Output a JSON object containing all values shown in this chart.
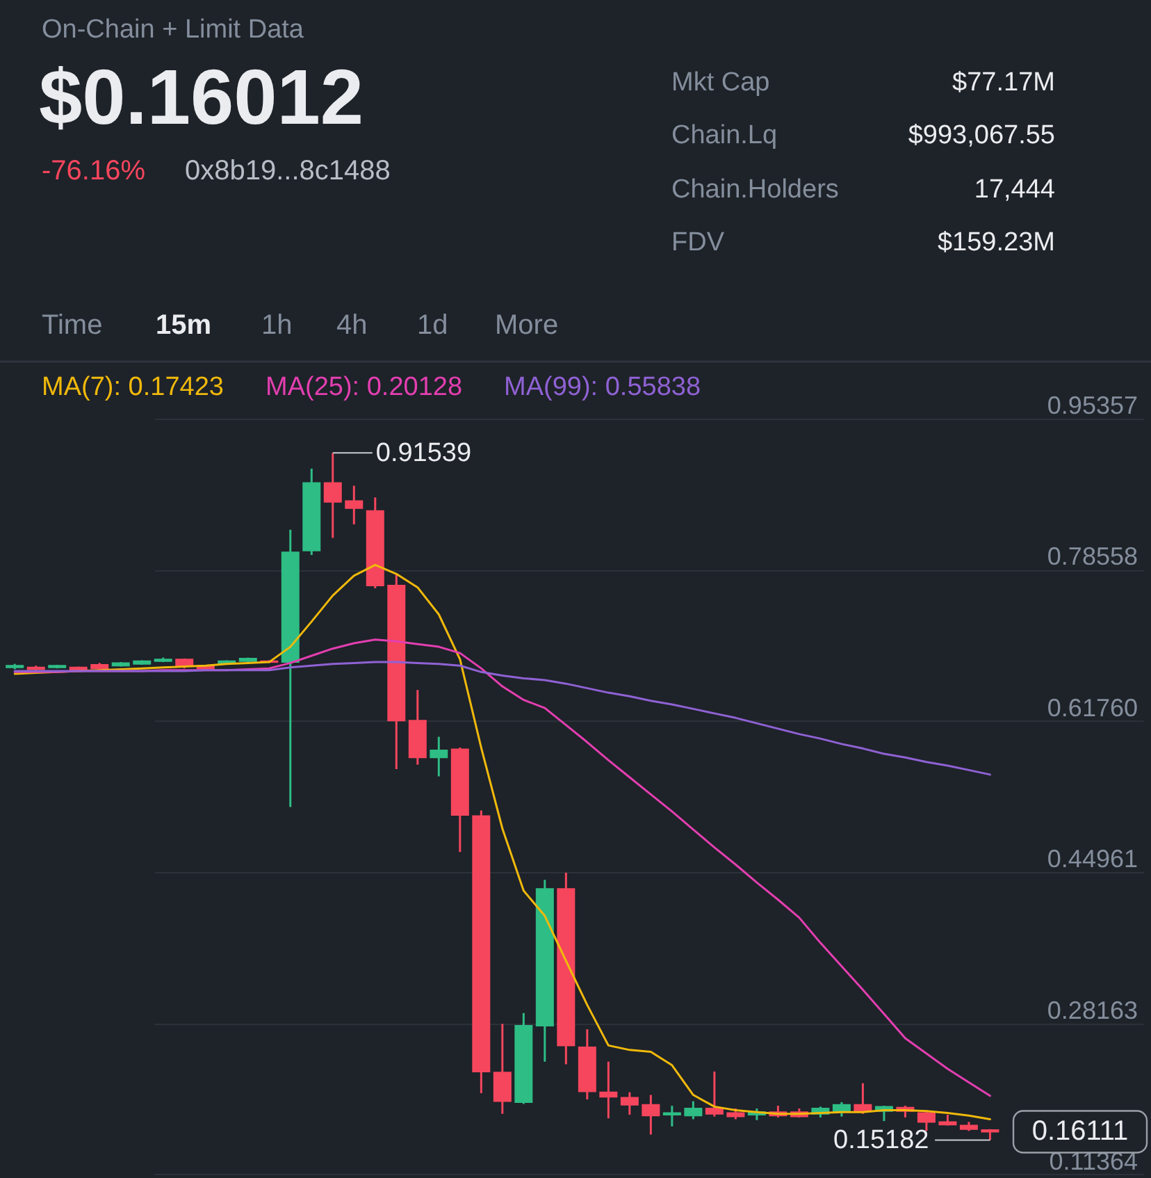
{
  "chart_data": {
    "type": "candlestick",
    "title": "On-Chain + Limit Data",
    "subtitle": "$0.16012",
    "annotations": [
      "-76.16%",
      "0x8b19...8c1488",
      "Mkt Cap",
      "$77.17M",
      "Chain.Lq",
      "$993,067.55",
      "Chain.Holders",
      "17,444",
      "FDV",
      "$159.23M",
      "Time",
      "15m",
      "1h",
      "4h",
      "1d",
      "More",
      "0.91539",
      "0.15182",
      "0.16111"
    ],
    "categories": [
      null,
      null,
      null,
      null,
      null,
      null,
      null,
      null,
      null,
      null,
      null,
      null,
      null,
      null,
      null,
      null,
      null,
      null,
      null,
      null,
      null,
      null,
      null,
      null,
      null,
      null,
      null,
      null,
      null,
      null,
      null,
      null,
      null,
      null,
      null,
      null,
      null,
      null,
      null,
      null,
      null,
      null,
      null,
      null,
      null,
      null,
      null
    ],
    "ohlc": [
      [
        0.677,
        0.681,
        0.675,
        0.679
      ],
      [
        0.677,
        0.679,
        0.674,
        0.675
      ],
      [
        0.677,
        0.68,
        0.676,
        0.679
      ],
      [
        0.677,
        0.678,
        0.673,
        0.674
      ],
      [
        0.68,
        0.682,
        0.675,
        0.676
      ],
      [
        0.679,
        0.683,
        0.678,
        0.682
      ],
      [
        0.681,
        0.685,
        0.68,
        0.684
      ],
      [
        0.684,
        0.688,
        0.683,
        0.686
      ],
      [
        0.686,
        0.687,
        0.676,
        0.679
      ],
      [
        0.679,
        0.68,
        0.675,
        0.676
      ],
      [
        0.682,
        0.685,
        0.681,
        0.684
      ],
      [
        0.684,
        0.688,
        0.683,
        0.687
      ],
      [
        0.684,
        0.685,
        0.682,
        0.683
      ],
      [
        0.683,
        0.83,
        0.522,
        0.805
      ],
      [
        0.807,
        0.898,
        0.802,
        0.882
      ],
      [
        0.882,
        0.91539,
        0.821,
        0.861
      ],
      [
        0.862,
        0.879,
        0.836,
        0.854
      ],
      [
        0.851,
        0.866,
        0.765,
        0.768
      ],
      [
        0.768,
        0.78,
        0.564,
        0.618
      ],
      [
        0.618,
        0.652,
        0.569,
        0.577
      ],
      [
        0.577,
        0.6,
        0.556,
        0.585
      ],
      [
        0.586,
        0.588,
        0.472,
        0.513
      ],
      [
        0.512,
        0.518,
        0.204,
        0.228
      ],
      [
        0.227,
        0.281,
        0.181,
        0.195
      ],
      [
        0.194,
        0.293,
        0.192,
        0.279
      ],
      [
        0.279,
        0.441,
        0.239,
        0.431
      ],
      [
        0.431,
        0.449,
        0.236,
        0.257
      ],
      [
        0.255,
        0.275,
        0.197,
        0.206
      ],
      [
        0.205,
        0.239,
        0.176,
        0.2
      ],
      [
        0.199,
        0.205,
        0.18,
        0.191
      ],
      [
        0.191,
        0.202,
        0.158,
        0.179
      ],
      [
        0.18,
        0.19,
        0.167,
        0.182
      ],
      [
        0.179,
        0.195,
        0.175,
        0.187
      ],
      [
        0.187,
        0.228,
        0.178,
        0.181
      ],
      [
        0.182,
        0.187,
        0.175,
        0.178
      ],
      [
        0.18,
        0.187,
        0.174,
        0.183
      ],
      [
        0.183,
        0.19,
        0.177,
        0.179
      ],
      [
        0.183,
        0.187,
        0.177,
        0.178
      ],
      [
        0.181,
        0.189,
        0.177,
        0.187
      ],
      [
        0.184,
        0.194,
        0.178,
        0.191
      ],
      [
        0.191,
        0.215,
        0.181,
        0.184
      ],
      [
        0.184,
        0.19,
        0.173,
        0.189
      ],
      [
        0.188,
        0.19,
        0.177,
        0.184
      ],
      [
        0.182,
        0.185,
        0.162,
        0.172
      ],
      [
        0.172,
        0.18,
        0.168,
        0.169
      ],
      [
        0.168,
        0.172,
        0.162,
        0.164
      ],
      [
        0.163,
        0.164,
        0.15182,
        0.16111
      ]
    ],
    "colors": [
      "#2ebd85",
      "#f6465d",
      "#2ebd85",
      "#f6465d",
      "#f6465d",
      "#2ebd85",
      "#2ebd85",
      "#2ebd85",
      "#f6465d",
      "#f6465d",
      "#2ebd85",
      "#2ebd85",
      "#f6465d",
      "#2ebd85",
      "#2ebd85",
      "#f6465d",
      "#f6465d",
      "#f6465d",
      "#f6465d",
      "#f6465d",
      "#2ebd85",
      "#f6465d",
      "#f6465d",
      "#f6465d",
      "#2ebd85",
      "#2ebd85",
      "#f6465d",
      "#f6465d",
      "#f6465d",
      "#f6465d",
      "#f6465d",
      "#2ebd85",
      "#2ebd85",
      "#f6465d",
      "#f6465d",
      "#2ebd85",
      "#f6465d",
      "#f6465d",
      "#2ebd85",
      "#2ebd85",
      "#f6465d",
      "#2ebd85",
      "#f6465d",
      "#f6465d",
      "#f6465d",
      "#f6465d",
      "#f6465d"
    ],
    "series": [
      {
        "name": "MA(7): 0.17423",
        "type": "line",
        "color": "#f0b90b",
        "values": [
          0.67,
          0.671,
          0.672,
          0.673,
          0.674,
          0.675,
          0.676,
          0.677,
          0.678,
          0.679,
          0.681,
          0.682,
          0.683,
          0.7,
          0.728,
          0.757,
          0.779,
          0.791,
          0.781,
          0.766,
          0.736,
          0.686,
          0.588,
          0.498,
          0.429,
          0.401,
          0.351,
          0.302,
          0.257,
          0.252,
          0.25,
          0.235,
          0.202,
          0.189,
          0.185,
          0.183,
          0.181,
          0.181,
          0.182,
          0.183,
          0.183,
          0.185,
          0.185,
          0.184,
          0.182,
          0.179,
          0.175
        ]
      },
      {
        "name": "MA(25): 0.20128",
        "type": "line",
        "color": "#e33fb0",
        "values": [
          0.672,
          0.672,
          0.672,
          0.673,
          0.673,
          0.673,
          0.673,
          0.674,
          0.674,
          0.674,
          0.674,
          0.675,
          0.676,
          0.682,
          0.69,
          0.698,
          0.704,
          0.708,
          0.706,
          0.703,
          0.7,
          0.693,
          0.676,
          0.656,
          0.641,
          0.632,
          0.613,
          0.594,
          0.574,
          0.555,
          0.536,
          0.517,
          0.497,
          0.477,
          0.458,
          0.438,
          0.419,
          0.399,
          0.371,
          0.345,
          0.319,
          0.292,
          0.265,
          0.248,
          0.231,
          0.216,
          0.201
        ]
      },
      {
        "name": "MA(99): 0.55838",
        "type": "line",
        "color": "#8f62d4",
        "values": [
          0.673,
          0.673,
          0.673,
          0.673,
          0.673,
          0.673,
          0.673,
          0.673,
          0.673,
          0.674,
          0.674,
          0.674,
          0.674,
          0.677,
          0.679,
          0.681,
          0.682,
          0.683,
          0.683,
          0.682,
          0.681,
          0.679,
          0.672,
          0.668,
          0.665,
          0.663,
          0.659,
          0.654,
          0.649,
          0.645,
          0.64,
          0.636,
          0.631,
          0.626,
          0.621,
          0.615,
          0.609,
          0.603,
          0.598,
          0.592,
          0.587,
          0.581,
          0.577,
          0.572,
          0.568,
          0.563,
          0.558
        ]
      }
    ],
    "ylim": [
      0.1097,
      1.0169
    ],
    "yticks": [
      0.95357,
      0.78558,
      {
        "value": 0.6176,
        "label": "0.61760"
      },
      0.44961,
      0.28163,
      0.11364
    ],
    "grid": "y",
    "legend": "top left"
  }
}
